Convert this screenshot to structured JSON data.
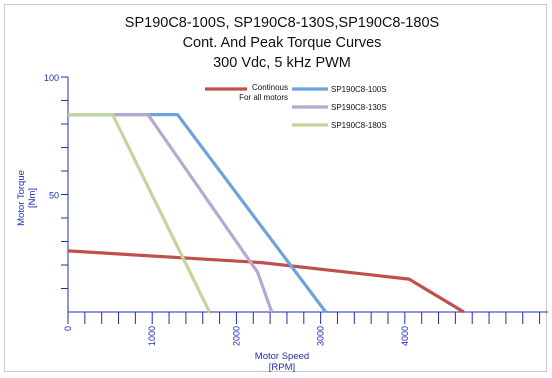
{
  "chart_data": {
    "type": "line",
    "title": [
      "SP190C8-100S, SP190C8-130S,SP190C8-180S",
      "Cont. And Peak Torque Curves",
      "300 Vdc, 5 kHz PWM"
    ],
    "xlabel": [
      "Motor Speed",
      "[RPM]"
    ],
    "ylabel": [
      "Motor Torque",
      "[Nm]"
    ],
    "xlim": [
      0,
      5700
    ],
    "ylim": [
      0,
      100
    ],
    "x_ticks": [
      0,
      1000,
      2000,
      3000,
      4000
    ],
    "y_ticks": [
      50,
      100
    ],
    "grid": false,
    "legend_position": "top-center",
    "series": [
      {
        "name": [
          "Continous",
          "For all motors"
        ],
        "color": "#c0504d",
        "points": [
          [
            0,
            26
          ],
          [
            2300,
            21
          ],
          [
            4050,
            14
          ],
          [
            4700,
            0
          ]
        ]
      },
      {
        "name": [
          "SP190C8-100S"
        ],
        "color": "#6fa1dc",
        "points": [
          [
            0,
            84
          ],
          [
            1300,
            84
          ],
          [
            3060,
            0
          ]
        ]
      },
      {
        "name": [
          "SP190C8-130S"
        ],
        "color": "#b8a8ce",
        "points": [
          [
            0,
            84
          ],
          [
            950,
            84
          ],
          [
            2250,
            17
          ],
          [
            2420,
            0
          ]
        ]
      },
      {
        "name": [
          "SP190C8-180S"
        ],
        "color": "#c3d69b",
        "points": [
          [
            0,
            84
          ],
          [
            530,
            84
          ],
          [
            1680,
            0
          ]
        ]
      }
    ]
  }
}
